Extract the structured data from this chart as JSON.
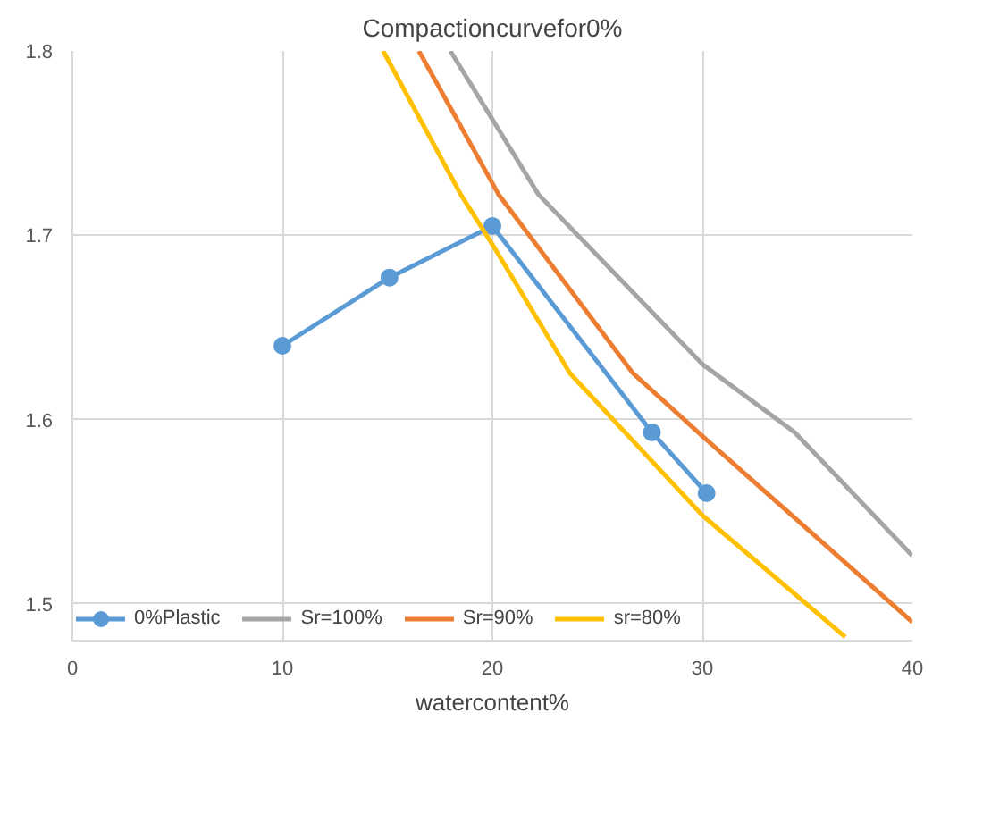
{
  "chart_data": {
    "type": "line",
    "title": "Compactioncurvefor0%",
    "xlabel": "watercontent%",
    "xlim": [
      0,
      40
    ],
    "xticks": [
      0,
      10,
      20,
      30,
      40
    ],
    "ylim": [
      1.48,
      1.8
    ],
    "yticks": [
      1.5,
      1.6,
      1.7,
      1.8
    ],
    "grid": true,
    "legend": "bottom left",
    "series": [
      {
        "name": "0%Plastic",
        "color": "#5b9bd5",
        "marker": "circle",
        "x": [
          10,
          15.1,
          20,
          27.6,
          30.2
        ],
        "values": [
          1.64,
          1.677,
          1.705,
          1.593,
          1.56
        ]
      },
      {
        "name": "Sr=100%",
        "color": "#a5a5a5",
        "marker": "none",
        "x": [
          18,
          22.2,
          30,
          34.4,
          40
        ],
        "values": [
          1.8,
          1.722,
          1.63,
          1.593,
          1.526
        ]
      },
      {
        "name": "Sr=90%",
        "color": "#ed7d31",
        "marker": "none",
        "x": [
          16.5,
          20.3,
          26.7,
          30,
          40
        ],
        "values": [
          1.8,
          1.722,
          1.625,
          1.591,
          1.49
        ]
      },
      {
        "name": "sr=80%",
        "color": "#ffc000",
        "marker": "none",
        "x": [
          14.8,
          18.5,
          20,
          23.7,
          30,
          36.8
        ],
        "values": [
          1.8,
          1.722,
          1.695,
          1.625,
          1.548,
          1.482
        ]
      }
    ]
  }
}
